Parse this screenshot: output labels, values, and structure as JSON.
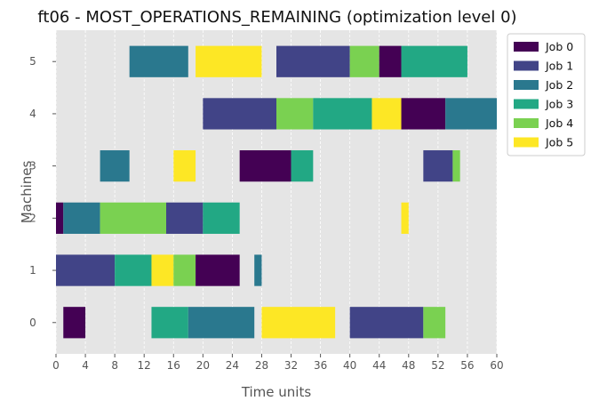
{
  "chart_data": {
    "type": "gantt",
    "title": "ft06 - MOST_OPERATIONS_REMAINING (optimization level 0)",
    "xlabel": "Time units",
    "ylabel": "Machines",
    "xlim": [
      0,
      60
    ],
    "ylim": [
      -0.6,
      5.6
    ],
    "xticks": [
      0,
      4,
      8,
      12,
      16,
      20,
      24,
      28,
      32,
      36,
      40,
      44,
      48,
      52,
      56,
      60
    ],
    "yticks": [
      0,
      1,
      2,
      3,
      4,
      5
    ],
    "grid": true,
    "background": "#e5e5e5",
    "legend_position": "upper-right-outside",
    "jobs": [
      {
        "name": "Job 0",
        "color": "#440154"
      },
      {
        "name": "Job 1",
        "color": "#414487"
      },
      {
        "name": "Job 2",
        "color": "#2a788e"
      },
      {
        "name": "Job 3",
        "color": "#22a884"
      },
      {
        "name": "Job 4",
        "color": "#7ad151"
      },
      {
        "name": "Job 5",
        "color": "#fde725"
      }
    ],
    "tasks": [
      {
        "machine": 0,
        "job": 0,
        "start": 1,
        "end": 4
      },
      {
        "machine": 0,
        "job": 3,
        "start": 13,
        "end": 18
      },
      {
        "machine": 0,
        "job": 2,
        "start": 18,
        "end": 27
      },
      {
        "machine": 0,
        "job": 5,
        "start": 28,
        "end": 38
      },
      {
        "machine": 0,
        "job": 1,
        "start": 40,
        "end": 50
      },
      {
        "machine": 0,
        "job": 4,
        "start": 50,
        "end": 53
      },
      {
        "machine": 1,
        "job": 1,
        "start": 0,
        "end": 8
      },
      {
        "machine": 1,
        "job": 3,
        "start": 8,
        "end": 13
      },
      {
        "machine": 1,
        "job": 5,
        "start": 13,
        "end": 16
      },
      {
        "machine": 1,
        "job": 4,
        "start": 16,
        "end": 19
      },
      {
        "machine": 1,
        "job": 0,
        "start": 19,
        "end": 25
      },
      {
        "machine": 1,
        "job": 2,
        "start": 27,
        "end": 28
      },
      {
        "machine": 2,
        "job": 0,
        "start": 0,
        "end": 1
      },
      {
        "machine": 2,
        "job": 2,
        "start": 1,
        "end": 6
      },
      {
        "machine": 2,
        "job": 4,
        "start": 6,
        "end": 15
      },
      {
        "machine": 2,
        "job": 1,
        "start": 15,
        "end": 20
      },
      {
        "machine": 2,
        "job": 3,
        "start": 20,
        "end": 25
      },
      {
        "machine": 2,
        "job": 5,
        "start": 47,
        "end": 48
      },
      {
        "machine": 3,
        "job": 2,
        "start": 6,
        "end": 10
      },
      {
        "machine": 3,
        "job": 5,
        "start": 16,
        "end": 19
      },
      {
        "machine": 3,
        "job": 0,
        "start": 25,
        "end": 32
      },
      {
        "machine": 3,
        "job": 3,
        "start": 32,
        "end": 35
      },
      {
        "machine": 3,
        "job": 1,
        "start": 50,
        "end": 54
      },
      {
        "machine": 3,
        "job": 4,
        "start": 54,
        "end": 55
      },
      {
        "machine": 4,
        "job": 1,
        "start": 20,
        "end": 30
      },
      {
        "machine": 4,
        "job": 4,
        "start": 30,
        "end": 35
      },
      {
        "machine": 4,
        "job": 3,
        "start": 35,
        "end": 43
      },
      {
        "machine": 4,
        "job": 5,
        "start": 43,
        "end": 47
      },
      {
        "machine": 4,
        "job": 0,
        "start": 47,
        "end": 53
      },
      {
        "machine": 4,
        "job": 2,
        "start": 53,
        "end": 60
      },
      {
        "machine": 5,
        "job": 2,
        "start": 10,
        "end": 18
      },
      {
        "machine": 5,
        "job": 5,
        "start": 19,
        "end": 28
      },
      {
        "machine": 5,
        "job": 1,
        "start": 30,
        "end": 40
      },
      {
        "machine": 5,
        "job": 4,
        "start": 40,
        "end": 44
      },
      {
        "machine": 5,
        "job": 0,
        "start": 44,
        "end": 47
      },
      {
        "machine": 5,
        "job": 3,
        "start": 47,
        "end": 56
      }
    ]
  }
}
